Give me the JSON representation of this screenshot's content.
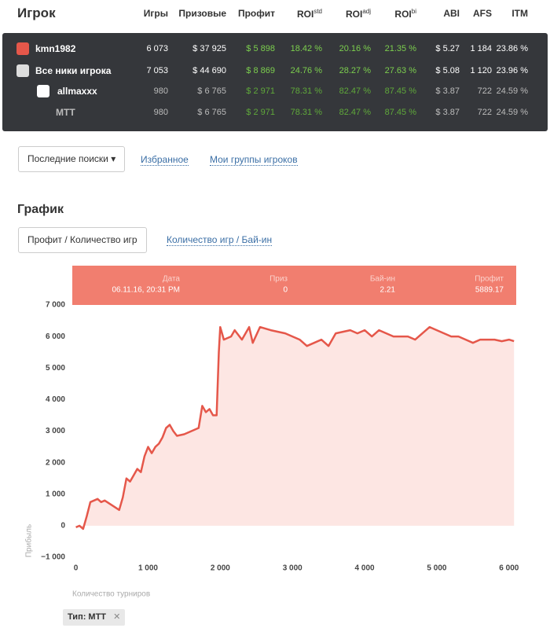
{
  "header": {
    "title": "Игрок",
    "columns": [
      "Игры",
      "Призовые",
      "Профит",
      {
        "text": "ROI",
        "sup": "std"
      },
      {
        "text": "ROI",
        "sup": "adj"
      },
      {
        "text": "ROI",
        "sup": "bi"
      },
      "ABI",
      "AFS",
      "ITM"
    ]
  },
  "rows": [
    {
      "name": "kmn1982",
      "cells": [
        "6 073",
        "$ 37 925",
        "$ 5 898",
        "18.42 %",
        "20.16 %",
        "21.35 %",
        "$ 5.27",
        "1 184",
        "23.86 %"
      ]
    },
    {
      "name": "Все ники игрока",
      "cells": [
        "7 053",
        "$ 44 690",
        "$ 8 869",
        "24.76 %",
        "28.27 %",
        "27.63 %",
        "$ 5.08",
        "1 120",
        "23.96 %"
      ]
    },
    {
      "name": "allmaxxx",
      "cells": [
        "980",
        "$ 6 765",
        "$ 2 971",
        "78.31 %",
        "82.47 %",
        "87.45 %",
        "$ 3.87",
        "722",
        "24.59 %"
      ]
    },
    {
      "name": "MTT",
      "cells": [
        "980",
        "$ 6 765",
        "$ 2 971",
        "78.31 %",
        "82.47 %",
        "87.45 %",
        "$ 3.87",
        "722",
        "24.59 %"
      ]
    }
  ],
  "search": {
    "dropdown": "Последние поиски",
    "links": [
      "Избранное",
      "Мои группы игроков"
    ]
  },
  "graph": {
    "title": "График",
    "tabs": [
      "Профит / Количество игр",
      "Количество игр / Бай-ин"
    ]
  },
  "tooltip": {
    "labels": [
      "Дата",
      "Приз",
      "Бай-ин",
      "Профит"
    ],
    "values": [
      "06.11.16, 20:31 PM",
      "0",
      "2.21",
      "5889.17"
    ]
  },
  "chart_data": {
    "type": "line",
    "xlabel": "Количество турниров",
    "ylabel": "Прибыль",
    "color": "#e5574a",
    "fill": "#fde6e3",
    "x": [
      0,
      50,
      100,
      150,
      200,
      250,
      300,
      350,
      400,
      500,
      600,
      650,
      700,
      750,
      800,
      850,
      900,
      950,
      1000,
      1050,
      1100,
      1150,
      1200,
      1250,
      1300,
      1350,
      1400,
      1500,
      1600,
      1700,
      1750,
      1800,
      1850,
      1900,
      1950,
      1980,
      2000,
      2050,
      2150,
      2200,
      2300,
      2400,
      2450,
      2550,
      2700,
      2900,
      3000,
      3100,
      3200,
      3300,
      3400,
      3500,
      3600,
      3800,
      3900,
      4000,
      4100,
      4200,
      4300,
      4400,
      4600,
      4700,
      4800,
      4900,
      5000,
      5100,
      5200,
      5300,
      5400,
      5500,
      5600,
      5700,
      5800,
      5900,
      6000,
      6070
    ],
    "values": [
      -50,
      0,
      -100,
      300,
      750,
      800,
      850,
      750,
      800,
      650,
      500,
      900,
      1500,
      1400,
      1600,
      1800,
      1700,
      2200,
      2500,
      2300,
      2500,
      2600,
      2800,
      3100,
      3200,
      3000,
      2850,
      2900,
      3000,
      3100,
      3800,
      3600,
      3700,
      3500,
      3500,
      5500,
      6300,
      5900,
      6000,
      6200,
      5900,
      6300,
      5800,
      6300,
      6200,
      6100,
      6000,
      5900,
      5700,
      5800,
      5900,
      5700,
      6100,
      6200,
      6100,
      6200,
      6000,
      6200,
      6100,
      6000,
      6000,
      5900,
      6100,
      6300,
      6200,
      6100,
      6000,
      6000,
      5900,
      5800,
      5900,
      5900,
      5900,
      5850,
      5900,
      5850
    ],
    "xlim": [
      -50,
      6100
    ],
    "ylim": [
      -1000,
      7000
    ],
    "xticks": [
      0,
      {
        "value": 1000,
        "label": "1 000"
      },
      {
        "value": 2000,
        "label": "2 000"
      },
      {
        "value": 3000,
        "label": "3 000"
      },
      {
        "value": 4000,
        "label": "4 000"
      },
      {
        "value": 5000,
        "label": "5 000"
      },
      {
        "value": 6000,
        "label": "6 000"
      }
    ],
    "yticks": [
      {
        "value": -1000,
        "label": "−1 000"
      },
      0,
      {
        "value": 1000,
        "label": "1 000"
      },
      {
        "value": 2000,
        "label": "2 000"
      },
      {
        "value": 3000,
        "label": "3 000"
      },
      {
        "value": 4000,
        "label": "4 000"
      },
      {
        "value": 5000,
        "label": "5 000"
      },
      {
        "value": 6000,
        "label": "6 000"
      },
      {
        "value": 7000,
        "label": "7 000"
      }
    ],
    "grid": false
  },
  "filter": {
    "chip": "Тип: MTT"
  }
}
